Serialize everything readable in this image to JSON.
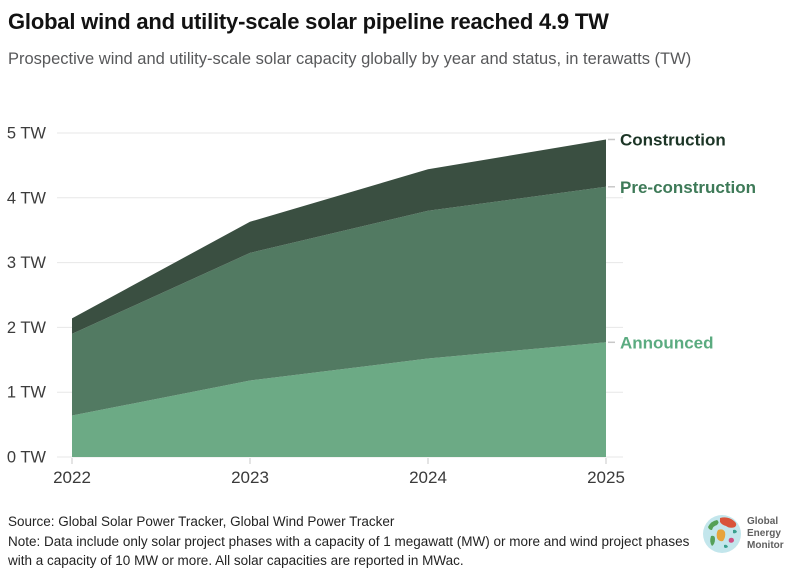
{
  "header": {
    "title": "Global wind and utility-scale solar pipeline reached 4.9 TW",
    "subtitle": "Prospective wind and utility-scale solar capacity globally by year and status, in terawatts (TW)"
  },
  "chart_data": {
    "type": "area",
    "stacked": true,
    "x": [
      2022,
      2023,
      2024,
      2025
    ],
    "x_ticks": [
      "2022",
      "2023",
      "2024",
      "2025"
    ],
    "y_ticks": [
      "0 TW",
      "1 TW",
      "2 TW",
      "3 TW",
      "4 TW",
      "5 TW"
    ],
    "ylim": [
      0,
      5
    ],
    "grid": true,
    "legend_position": "right-edge-labels",
    "unit": "TW",
    "series": [
      {
        "name": "Announced",
        "values": [
          0.64,
          1.18,
          1.52,
          1.77
        ],
        "stack_top": [
          0.64,
          1.18,
          1.52,
          1.77
        ],
        "color": "#6caa85",
        "label_color": "#5bab80"
      },
      {
        "name": "Pre-construction",
        "values": [
          1.26,
          1.97,
          2.28,
          2.4
        ],
        "stack_top": [
          1.9,
          3.15,
          3.8,
          4.17
        ],
        "color": "#527a62",
        "label_color": "#3e7a58"
      },
      {
        "name": "Construction",
        "values": [
          0.24,
          0.48,
          0.64,
          0.73
        ],
        "stack_top": [
          2.14,
          3.63,
          4.44,
          4.9
        ],
        "color": "#3a4f41",
        "label_color": "#1c3526"
      }
    ]
  },
  "footer": {
    "source": "Source: Global Solar Power Tracker, Global Wind Power Tracker",
    "note": "Note: Data include only solar project phases with a capacity of 1 megawatt (MW) or more and wind project phases with a capacity of 10 MW or more. All solar capacities are reported in MWac."
  },
  "logo": {
    "icon": "globe-icon",
    "line1": "Global",
    "line2": "Energy",
    "line3": "Monitor",
    "colors": {
      "ocean": "#c3e6ec",
      "green": "#55a055",
      "red": "#d9533a",
      "orange": "#e7a33b",
      "magenta": "#cf4f82",
      "teal": "#3aa08e"
    }
  }
}
